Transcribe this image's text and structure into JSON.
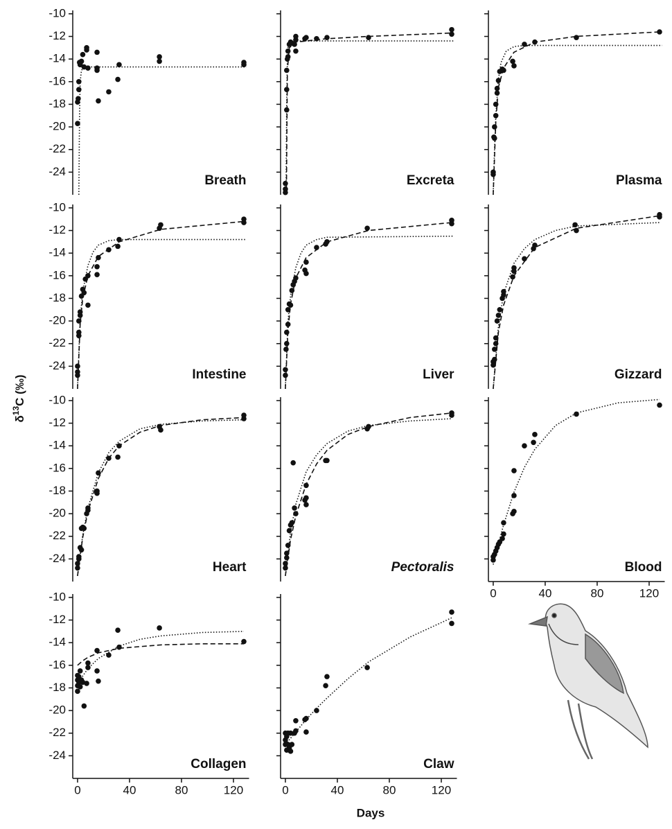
{
  "chart_data": {
    "type": "scatter",
    "ylabel": [
      "δ",
      "13",
      "C (‰)"
    ],
    "xlabel": "Days",
    "xlim": [
      -3.7,
      132
    ],
    "ylim": [
      -26,
      -9.7
    ],
    "xticks": [
      0,
      40,
      80,
      120
    ],
    "yticks": [
      -10,
      -12,
      -14,
      -16,
      -18,
      -20,
      -22,
      -24
    ],
    "marker_color": "#111111",
    "fit_color": "#111111",
    "panels": [
      {
        "label": "Breath",
        "x": [
          0,
          0,
          0.5,
          1,
          1,
          1.5,
          2,
          3,
          4,
          5,
          7,
          7,
          8,
          15,
          15,
          15,
          16,
          24,
          31,
          32,
          63,
          63,
          128,
          128
        ],
        "y": [
          -19.7,
          -17.8,
          -17.5,
          -16.7,
          -16,
          -14.3,
          -14.5,
          -14.2,
          -13.6,
          -14.7,
          -13.2,
          -13,
          -14.8,
          -13.4,
          -14.8,
          -15,
          -17.7,
          -16.9,
          -15.8,
          -14.5,
          -14.2,
          -13.8,
          -14.5,
          -14.3
        ],
        "fits": [
          {
            "style": "dotted",
            "x": [
              1,
              1.5,
              2,
              3,
              5,
              10,
              30,
              130
            ],
            "y": [
              -26,
              -19,
              -16,
              -15,
              -14.7,
              -14.7,
              -14.7,
              -14.7
            ]
          }
        ]
      },
      {
        "label": "Excreta",
        "x": [
          0,
          0,
          0,
          1,
          1,
          1,
          1.5,
          2,
          2,
          3,
          4,
          5,
          7,
          8,
          8,
          8,
          15,
          16,
          24,
          32,
          64,
          128,
          128
        ],
        "y": [
          -25,
          -25.5,
          -25.8,
          -18.5,
          -16.7,
          -15,
          -14,
          -13.8,
          -13.3,
          -12.7,
          -12.5,
          -12.6,
          -12.7,
          -13.3,
          -12.3,
          -12,
          -12.2,
          -12.1,
          -12.2,
          -12.1,
          -12.1,
          -11.8,
          -11.4
        ],
        "fits": [
          {
            "style": "dotted",
            "x": [
              0.5,
              1,
              1.5,
              2,
              3,
              5,
              130
            ],
            "y": [
              -26,
              -18,
              -14,
              -13,
              -12.5,
              -12.4,
              -12.4
            ]
          },
          {
            "style": "dashed",
            "x": [
              0.8,
              1.5,
              3,
              8,
              16,
              32,
              64,
              128
            ],
            "y": [
              -26,
              -15,
              -13,
              -12.5,
              -12.4,
              -12.2,
              -12,
              -11.7
            ]
          }
        ]
      },
      {
        "label": "Plasma",
        "x": [
          0,
          0,
          0.5,
          1,
          1,
          2,
          2,
          3,
          3,
          4,
          5,
          7,
          8,
          15,
          16,
          24,
          32,
          64,
          128
        ],
        "y": [
          -24,
          -24.2,
          -20.9,
          -21,
          -20,
          -19,
          -18,
          -17,
          -16.6,
          -15.9,
          -15.1,
          -14.9,
          -15,
          -14.2,
          -14.6,
          -12.7,
          -12.5,
          -12.1,
          -11.6
        ],
        "fits": [
          {
            "style": "dotted",
            "x": [
              0,
              1,
              2,
              4,
              6,
              10,
              16,
              24,
              130
            ],
            "y": [
              -26,
              -22,
              -19,
              -15.8,
              -14.3,
              -13.3,
              -12.9,
              -12.8,
              -12.8
            ]
          },
          {
            "style": "dashed",
            "x": [
              0,
              2,
              4,
              8,
              16,
              32,
              64,
              128
            ],
            "y": [
              -26,
              -19.5,
              -16.5,
              -14.8,
              -13.4,
              -12.5,
              -12,
              -11.6
            ]
          }
        ]
      },
      {
        "label": "Intestine",
        "x": [
          0,
          0,
          0,
          1,
          1,
          1,
          2,
          2,
          3,
          4,
          5,
          6,
          8,
          8,
          15,
          15,
          16,
          24,
          31,
          32,
          63,
          64,
          128,
          128
        ],
        "y": [
          -24,
          -24.5,
          -24.8,
          -21.3,
          -21,
          -20,
          -19.5,
          -19.2,
          -17.8,
          -17.2,
          -17.5,
          -16.3,
          -18.6,
          -16,
          -15.2,
          -15.9,
          -14.4,
          -13.7,
          -13.4,
          -12.8,
          -11.8,
          -11.5,
          -11.3,
          -11
        ],
        "fits": [
          {
            "style": "dotted",
            "x": [
              0,
              2,
              4,
              8,
              12,
              16,
              24,
              32,
              130
            ],
            "y": [
              -26,
              -19.8,
              -17.4,
              -15.1,
              -13.9,
              -13.3,
              -12.9,
              -12.8,
              -12.8
            ]
          },
          {
            "style": "dashed",
            "x": [
              0,
              2,
              4,
              8,
              16,
              32,
              64,
              128
            ],
            "y": [
              -26,
              -20.3,
              -18,
              -16,
              -14.3,
              -13,
              -11.9,
              -11.2
            ]
          }
        ]
      },
      {
        "label": "Liver",
        "x": [
          0,
          0,
          0.5,
          1,
          1,
          2,
          2,
          3,
          4,
          5,
          6,
          7,
          8,
          15,
          16,
          16,
          24,
          31,
          32,
          63,
          128,
          128
        ],
        "y": [
          -24.3,
          -24.8,
          -22.5,
          -22,
          -21,
          -20.3,
          -19,
          -18.5,
          -18.6,
          -17.3,
          -16.8,
          -16.5,
          -16.2,
          -15.5,
          -15.8,
          -14.8,
          -13.5,
          -13.2,
          -13,
          -11.8,
          -11.4,
          -11.1
        ],
        "fits": [
          {
            "style": "dotted",
            "x": [
              0,
              2,
              4,
              8,
              12,
              16,
              24,
              32,
              130
            ],
            "y": [
              -26,
              -20,
              -17.8,
              -15.3,
              -14,
              -13.3,
              -12.8,
              -12.6,
              -12.5
            ]
          },
          {
            "style": "dashed",
            "x": [
              0,
              2,
              4,
              8,
              16,
              32,
              64,
              128
            ],
            "y": [
              -26,
              -20.8,
              -18.5,
              -16.2,
              -14.4,
              -13,
              -12,
              -11.3
            ]
          }
        ]
      },
      {
        "label": "Gizzard",
        "x": [
          0,
          0,
          1,
          1,
          2,
          2,
          3,
          4,
          5,
          7,
          8,
          8,
          15,
          16,
          16,
          24,
          31,
          32,
          63,
          64,
          128,
          128
        ],
        "y": [
          -23.6,
          -23.9,
          -23.4,
          -22.5,
          -22,
          -21.5,
          -20,
          -19.5,
          -19,
          -18,
          -17.7,
          -17.4,
          -16.1,
          -15.3,
          -15.6,
          -14.5,
          -13.6,
          -13.3,
          -11.5,
          -12,
          -10.8,
          -10.6
        ],
        "fits": [
          {
            "style": "dotted",
            "x": [
              0,
              4,
              8,
              16,
              24,
              32,
              48,
              64,
              128
            ],
            "y": [
              -26,
              -20.5,
              -17.6,
              -14.9,
              -13.6,
              -12.8,
              -12,
              -11.6,
              -11.3
            ]
          },
          {
            "style": "dashed",
            "x": [
              0,
              4,
              8,
              16,
              32,
              64,
              128
            ],
            "y": [
              -26,
              -21,
              -18.6,
              -16,
              -13.5,
              -11.8,
              -10.7
            ]
          }
        ]
      },
      {
        "label": "Heart",
        "x": [
          0,
          0,
          1,
          1,
          2,
          3,
          3,
          4,
          5,
          7,
          8,
          8,
          15,
          15,
          16,
          24,
          31,
          32,
          63,
          64,
          128,
          128
        ],
        "y": [
          -24.8,
          -24.4,
          -24,
          -23.8,
          -23,
          -23.2,
          -21.3,
          -21.2,
          -21.3,
          -20,
          -19.7,
          -19.5,
          -18,
          -18.2,
          -16.4,
          -15.1,
          -15,
          -14,
          -12.3,
          -12.6,
          -11.6,
          -11.3
        ],
        "fits": [
          {
            "style": "dotted",
            "x": [
              0,
              4,
              8,
              16,
              24,
              32,
              48,
              64,
              96,
              128
            ],
            "y": [
              -25.5,
              -21.9,
              -19.5,
              -16.4,
              -14.6,
              -13.6,
              -12.5,
              -12.1,
              -11.8,
              -11.7
            ]
          },
          {
            "style": "dashed",
            "x": [
              0,
              4,
              8,
              16,
              24,
              32,
              48,
              64,
              96,
              128
            ],
            "y": [
              -25.5,
              -22.1,
              -19.8,
              -16.9,
              -15.1,
              -14,
              -12.8,
              -12.2,
              -11.7,
              -11.5
            ]
          }
        ]
      },
      {
        "label": "Pectoralis",
        "italic": true,
        "x": [
          0,
          0,
          1,
          1,
          2,
          3,
          4,
          5,
          6,
          7,
          8,
          15,
          16,
          16,
          16,
          31,
          32,
          63,
          64,
          128,
          128
        ],
        "y": [
          -24.8,
          -24.4,
          -23.9,
          -23.5,
          -22.8,
          -21.5,
          -21,
          -20.8,
          -15.5,
          -19.5,
          -20,
          -18.8,
          -19.2,
          -18.6,
          -17.5,
          -15.3,
          -15.3,
          -12.5,
          -12.3,
          -11.3,
          -11.1
        ],
        "fits": [
          {
            "style": "dotted",
            "x": [
              0,
              4,
              8,
              16,
              24,
              32,
              48,
              64,
              96,
              128
            ],
            "y": [
              -25.5,
              -21.6,
              -19.2,
              -16.3,
              -14.8,
              -13.8,
              -12.7,
              -12.2,
              -11.8,
              -11.6
            ]
          },
          {
            "style": "dashed",
            "x": [
              0,
              4,
              8,
              16,
              24,
              32,
              48,
              64,
              96,
              128
            ],
            "y": [
              -25.5,
              -22.3,
              -20.2,
              -17.4,
              -15.6,
              -14.4,
              -13,
              -12.3,
              -11.5,
              -11.1
            ]
          }
        ]
      },
      {
        "label": "Blood",
        "x": [
          0,
          0,
          1,
          2,
          3,
          4,
          5,
          7,
          8,
          8,
          15,
          16,
          16,
          16,
          24,
          31,
          32,
          64,
          128
        ],
        "y": [
          -23.8,
          -24.1,
          -23.6,
          -23.3,
          -23,
          -22.7,
          -22.5,
          -22.2,
          -21.8,
          -20.8,
          -20,
          -19.8,
          -18.4,
          -16.2,
          -14,
          -13.7,
          -13,
          -11.2,
          -10.4
        ],
        "fits": [
          {
            "style": "dotted",
            "x": [
              0,
              4,
              8,
              16,
              24,
              32,
              48,
              64,
              96,
              128
            ],
            "y": [
              -24.5,
              -22.7,
              -21,
              -18.1,
              -15.9,
              -14.3,
              -12.2,
              -11.1,
              -10.2,
              -9.9
            ]
          }
        ]
      },
      {
        "label": "Collagen",
        "x": [
          0,
          0,
          0,
          0,
          1,
          1,
          2,
          2,
          3,
          4,
          5,
          7,
          8,
          8,
          15,
          15,
          16,
          24,
          31,
          32,
          63,
          128
        ],
        "y": [
          -16.9,
          -17.3,
          -17.8,
          -18.3,
          -17,
          -17.5,
          -16.5,
          -17.9,
          -17.3,
          -17.5,
          -19.6,
          -17.6,
          -15.8,
          -16.2,
          -14.7,
          -16.5,
          -17.4,
          -15.1,
          -12.9,
          -14.4,
          -12.7,
          -13.9
        ],
        "fits": [
          {
            "style": "dotted",
            "x": [
              0,
              8,
              16,
              32,
              48,
              64,
              96,
              128
            ],
            "y": [
              -17.6,
              -16.3,
              -15.4,
              -14.3,
              -13.7,
              -13.4,
              -13.1,
              -13
            ]
          },
          {
            "style": "dashed",
            "x": [
              0,
              4,
              8,
              16,
              32,
              64,
              96,
              128
            ],
            "y": [
              -16,
              -15.6,
              -15.3,
              -14.9,
              -14.5,
              -14.2,
              -14.1,
              -14.1
            ]
          }
        ]
      },
      {
        "label": "Claw",
        "x": [
          0,
          0,
          0,
          1,
          1,
          2,
          2,
          3,
          4,
          4,
          5,
          7,
          8,
          8,
          15,
          16,
          16,
          24,
          31,
          32,
          63,
          128,
          128
        ],
        "y": [
          -22,
          -22.6,
          -23,
          -23.5,
          -22.3,
          -22,
          -23,
          -23.3,
          -23.6,
          -22,
          -23,
          -22,
          -21.8,
          -20.9,
          -20.8,
          -21.9,
          -20.7,
          -20,
          -17.8,
          -17,
          -16.2,
          -12.3,
          -11.3
        ],
        "fits": [
          {
            "style": "dotted",
            "x": [
              0,
              8,
              16,
              24,
              32,
              48,
              64,
              96,
              128
            ],
            "y": [
              -23,
              -21.9,
              -20.8,
              -19.8,
              -18.9,
              -17.2,
              -15.7,
              -13.5,
              -11.8
            ]
          }
        ]
      }
    ]
  }
}
